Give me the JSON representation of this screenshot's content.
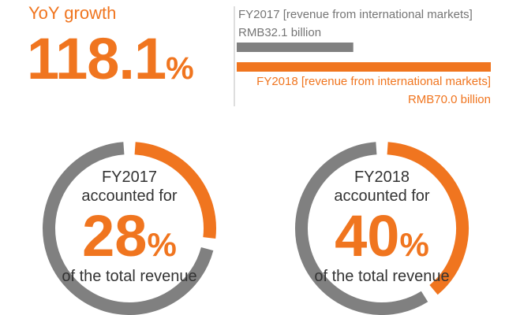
{
  "headline": {
    "label": "YoY growth",
    "value": "118.1",
    "unit": "%"
  },
  "bars": [
    {
      "name": "FY2017",
      "label_line1": "FY2017 [revenue from international markets]",
      "label_line2": "RMB32.1 billion",
      "value": 32.1,
      "color": "#808080"
    },
    {
      "name": "FY2018",
      "label_line1": "FY2018 [revenue from international markets]",
      "label_line2": "RMB70.0 billion",
      "value": 70.0,
      "color": "#f0751f"
    }
  ],
  "donuts": [
    {
      "year_line": "FY2017",
      "sub_line": "accounted for",
      "value": "28",
      "unit": "%",
      "foot_line": "of the total revenue",
      "percent": 28
    },
    {
      "year_line": "FY2018",
      "sub_line": "accounted for",
      "value": "40",
      "unit": "%",
      "foot_line": "of the total revenue",
      "percent": 40
    }
  ],
  "colors": {
    "accent": "#f0751f",
    "neutral": "#808080",
    "text": "#333333"
  },
  "chart_data": [
    {
      "type": "bar",
      "orientation": "horizontal",
      "categories": [
        "FY2017",
        "FY2018"
      ],
      "values": [
        32.1,
        70.0
      ],
      "unit": "RMB billion",
      "title": "",
      "xlabel": "",
      "ylabel": ""
    },
    {
      "type": "pie",
      "variant": "donut",
      "title": "",
      "year": "FY2017",
      "values": [
        28,
        72
      ]
    },
    {
      "type": "pie",
      "variant": "donut",
      "title": "",
      "year": "FY2018",
      "values": [
        40,
        60
      ]
    }
  ]
}
